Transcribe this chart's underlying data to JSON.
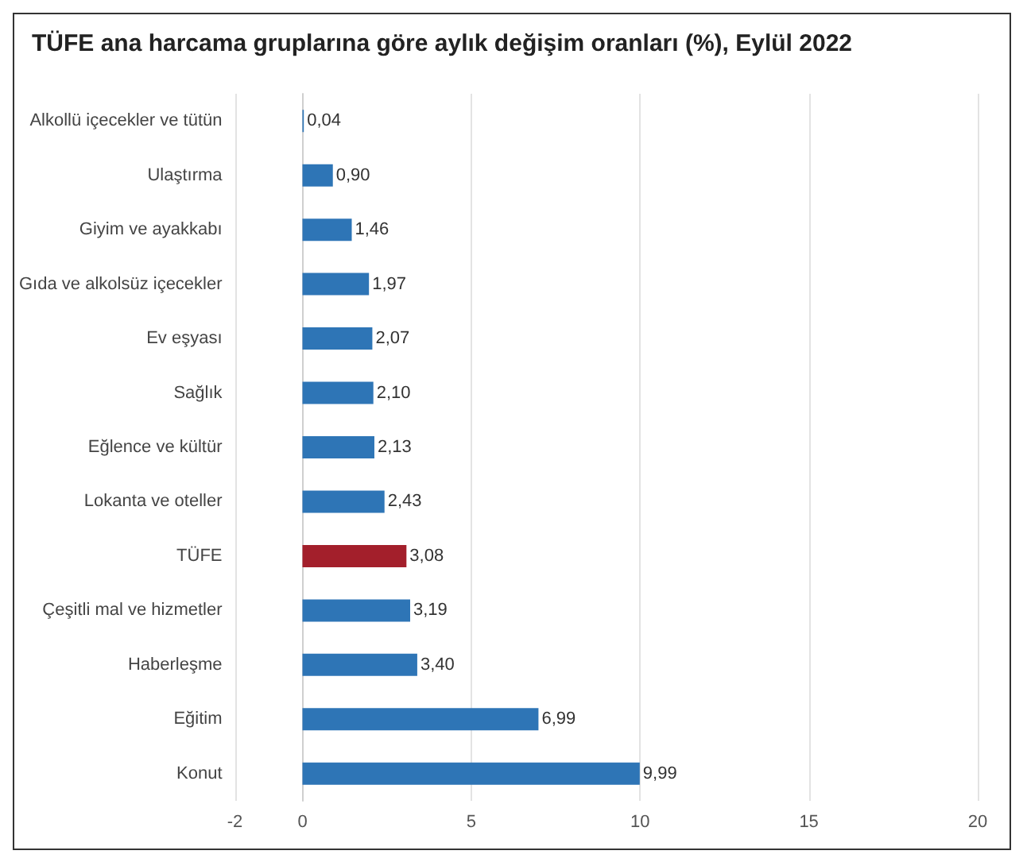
{
  "chart_data": {
    "type": "bar",
    "orientation": "horizontal",
    "title": "TÜFE ana harcama gruplarına göre aylık değişim oranları (%), Eylül 2022",
    "categories": [
      "Alkollü içecekler ve tütün",
      "Ulaştırma",
      "Giyim ve ayakkabı",
      "Gıda ve alkolsüz içecekler",
      "Ev eşyası",
      "Sağlık",
      "Eğlence ve kültür",
      "Lokanta ve oteller",
      "TÜFE",
      "Çeşitli mal ve hizmetler",
      "Haberleşme",
      "Eğitim",
      "Konut"
    ],
    "values": [
      0.04,
      0.9,
      1.46,
      1.97,
      2.07,
      2.1,
      2.13,
      2.43,
      3.08,
      3.19,
      3.4,
      6.99,
      9.99
    ],
    "colors": [
      "#2e75b6",
      "#2e75b6",
      "#2e75b6",
      "#2e75b6",
      "#2e75b6",
      "#2e75b6",
      "#2e75b6",
      "#2e75b6",
      "#a31f2b",
      "#2e75b6",
      "#2e75b6",
      "#2e75b6",
      "#2e75b6"
    ],
    "value_labels": [
      "0,04",
      "0,90",
      "1,46",
      "1,97",
      "2,07",
      "2,10",
      "2,13",
      "2,43",
      "3,08",
      "3,19",
      "3,40",
      "6,99",
      "9,99"
    ],
    "xlim": [
      -2,
      20
    ],
    "xticks": [
      -2,
      0,
      5,
      10,
      15,
      20
    ],
    "grid": "x"
  }
}
